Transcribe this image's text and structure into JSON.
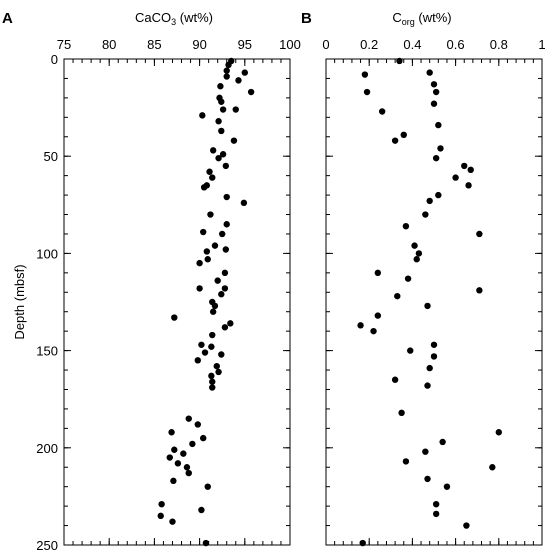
{
  "chart_data": [
    {
      "type": "scatter",
      "panel_label": "A",
      "xlabel_main": "CaCO",
      "xlabel_sub": "3",
      "xlabel_suffix": " (wt%)",
      "ylabel": "Depth (mbsf)",
      "xlim": [
        75,
        100
      ],
      "ylim": [
        0,
        250
      ],
      "y_inverted": true,
      "x_axis_position": "top",
      "x_ticks": [
        75,
        80,
        85,
        90,
        95,
        100
      ],
      "y_ticks": [
        0,
        50,
        100,
        150,
        200,
        250
      ],
      "grid": false,
      "points": [
        {
          "x": 93.5,
          "y": 1
        },
        {
          "x": 93.2,
          "y": 3
        },
        {
          "x": 93,
          "y": 6
        },
        {
          "x": 95,
          "y": 7
        },
        {
          "x": 93,
          "y": 9
        },
        {
          "x": 94.3,
          "y": 11
        },
        {
          "x": 92.3,
          "y": 14
        },
        {
          "x": 95.7,
          "y": 17
        },
        {
          "x": 92.2,
          "y": 20
        },
        {
          "x": 92.4,
          "y": 22
        },
        {
          "x": 92.6,
          "y": 26
        },
        {
          "x": 94,
          "y": 26
        },
        {
          "x": 90.3,
          "y": 29
        },
        {
          "x": 92.1,
          "y": 32
        },
        {
          "x": 92.4,
          "y": 37
        },
        {
          "x": 93.8,
          "y": 42
        },
        {
          "x": 91.5,
          "y": 47
        },
        {
          "x": 92.6,
          "y": 49
        },
        {
          "x": 92.1,
          "y": 51
        },
        {
          "x": 92.9,
          "y": 55
        },
        {
          "x": 91.1,
          "y": 58
        },
        {
          "x": 91.4,
          "y": 61
        },
        {
          "x": 90.8,
          "y": 65
        },
        {
          "x": 90.5,
          "y": 66
        },
        {
          "x": 93.0,
          "y": 71
        },
        {
          "x": 94.9,
          "y": 74
        },
        {
          "x": 91.2,
          "y": 80
        },
        {
          "x": 93.0,
          "y": 85
        },
        {
          "x": 90.4,
          "y": 89
        },
        {
          "x": 92.5,
          "y": 90
        },
        {
          "x": 91.7,
          "y": 96
        },
        {
          "x": 90.8,
          "y": 99
        },
        {
          "x": 92.9,
          "y": 98
        },
        {
          "x": 90.9,
          "y": 103
        },
        {
          "x": 90.0,
          "y": 105
        },
        {
          "x": 92.8,
          "y": 110
        },
        {
          "x": 92.0,
          "y": 114
        },
        {
          "x": 92.8,
          "y": 118
        },
        {
          "x": 92.4,
          "y": 121
        },
        {
          "x": 90.0,
          "y": 118
        },
        {
          "x": 91.4,
          "y": 125
        },
        {
          "x": 91.7,
          "y": 127
        },
        {
          "x": 91.5,
          "y": 130
        },
        {
          "x": 87.2,
          "y": 133
        },
        {
          "x": 93.4,
          "y": 136
        },
        {
          "x": 92.8,
          "y": 138
        },
        {
          "x": 91.4,
          "y": 142
        },
        {
          "x": 90.2,
          "y": 147
        },
        {
          "x": 91.3,
          "y": 148
        },
        {
          "x": 90.6,
          "y": 151
        },
        {
          "x": 92.4,
          "y": 152
        },
        {
          "x": 89.8,
          "y": 155
        },
        {
          "x": 91.9,
          "y": 158
        },
        {
          "x": 92.1,
          "y": 161
        },
        {
          "x": 91.3,
          "y": 163
        },
        {
          "x": 91.4,
          "y": 166
        },
        {
          "x": 91.4,
          "y": 169
        },
        {
          "x": 88.8,
          "y": 185
        },
        {
          "x": 89.8,
          "y": 188
        },
        {
          "x": 86.9,
          "y": 192
        },
        {
          "x": 90.4,
          "y": 195
        },
        {
          "x": 89.2,
          "y": 198
        },
        {
          "x": 87.2,
          "y": 201
        },
        {
          "x": 88.2,
          "y": 203
        },
        {
          "x": 86.7,
          "y": 205
        },
        {
          "x": 87.6,
          "y": 208
        },
        {
          "x": 88.6,
          "y": 210
        },
        {
          "x": 88.8,
          "y": 213
        },
        {
          "x": 87.1,
          "y": 217
        },
        {
          "x": 90.9,
          "y": 220
        },
        {
          "x": 85.8,
          "y": 229
        },
        {
          "x": 90.2,
          "y": 232
        },
        {
          "x": 85.7,
          "y": 235
        },
        {
          "x": 87.0,
          "y": 238
        },
        {
          "x": 90.7,
          "y": 249
        }
      ]
    },
    {
      "type": "scatter",
      "panel_label": "B",
      "xlabel_main": "C",
      "xlabel_sub": "org",
      "xlabel_suffix": " (wt%)",
      "xlim": [
        0,
        1
      ],
      "ylim": [
        0,
        250
      ],
      "y_inverted": true,
      "x_axis_position": "top",
      "x_ticks": [
        "0",
        "0.2",
        "0.4",
        "0.6",
        "0.8",
        "1"
      ],
      "x_tick_values": [
        0,
        0.2,
        0.4,
        0.6,
        0.8,
        1
      ],
      "y_ticks": [
        0,
        50,
        100,
        150,
        200,
        250
      ],
      "grid": false,
      "points": [
        {
          "x": 0.34,
          "y": 1
        },
        {
          "x": 0.48,
          "y": 7
        },
        {
          "x": 0.18,
          "y": 8
        },
        {
          "x": 0.5,
          "y": 13
        },
        {
          "x": 0.19,
          "y": 17
        },
        {
          "x": 0.51,
          "y": 17
        },
        {
          "x": 0.5,
          "y": 23
        },
        {
          "x": 0.26,
          "y": 27
        },
        {
          "x": 0.36,
          "y": 39
        },
        {
          "x": 0.32,
          "y": 42
        },
        {
          "x": 0.52,
          "y": 34
        },
        {
          "x": 0.53,
          "y": 46
        },
        {
          "x": 0.51,
          "y": 51
        },
        {
          "x": 0.64,
          "y": 55
        },
        {
          "x": 0.67,
          "y": 57
        },
        {
          "x": 0.6,
          "y": 61
        },
        {
          "x": 0.66,
          "y": 65
        },
        {
          "x": 0.52,
          "y": 70
        },
        {
          "x": 0.48,
          "y": 73
        },
        {
          "x": 0.46,
          "y": 80
        },
        {
          "x": 0.37,
          "y": 86
        },
        {
          "x": 0.71,
          "y": 90
        },
        {
          "x": 0.41,
          "y": 96
        },
        {
          "x": 0.43,
          "y": 100
        },
        {
          "x": 0.42,
          "y": 103
        },
        {
          "x": 0.24,
          "y": 110
        },
        {
          "x": 0.38,
          "y": 113
        },
        {
          "x": 0.71,
          "y": 119
        },
        {
          "x": 0.33,
          "y": 122
        },
        {
          "x": 0.47,
          "y": 127
        },
        {
          "x": 0.24,
          "y": 132
        },
        {
          "x": 0.16,
          "y": 137
        },
        {
          "x": 0.22,
          "y": 140
        },
        {
          "x": 0.5,
          "y": 147
        },
        {
          "x": 0.39,
          "y": 150
        },
        {
          "x": 0.5,
          "y": 153
        },
        {
          "x": 0.48,
          "y": 159
        },
        {
          "x": 0.32,
          "y": 165
        },
        {
          "x": 0.47,
          "y": 168
        },
        {
          "x": 0.35,
          "y": 182
        },
        {
          "x": 0.8,
          "y": 192
        },
        {
          "x": 0.54,
          "y": 197
        },
        {
          "x": 0.46,
          "y": 202
        },
        {
          "x": 0.37,
          "y": 207
        },
        {
          "x": 0.77,
          "y": 210
        },
        {
          "x": 0.47,
          "y": 216
        },
        {
          "x": 0.56,
          "y": 220
        },
        {
          "x": 0.51,
          "y": 229
        },
        {
          "x": 0.51,
          "y": 234
        },
        {
          "x": 0.65,
          "y": 240
        },
        {
          "x": 0.17,
          "y": 249
        }
      ]
    }
  ]
}
